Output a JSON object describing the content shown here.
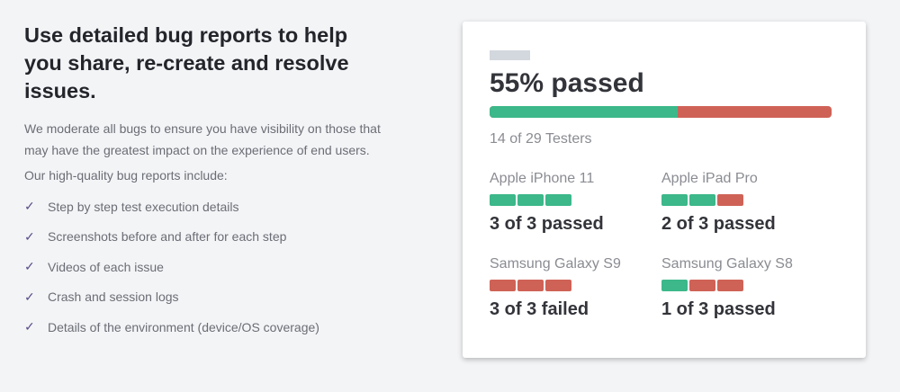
{
  "left": {
    "title": "Use detailed bug reports to help you share, re-create and resolve issues.",
    "intro": "We moderate all bugs to ensure you have visibility on those that may have the greatest impact on the experience of end users.",
    "subheading": "Our high-quality bug reports include:",
    "features": [
      "Step by step test execution details",
      "Screenshots before and after for each step",
      "Videos of each issue",
      "Crash and session logs",
      "Details of the environment (device/OS coverage)"
    ]
  },
  "card": {
    "headline": "55% passed",
    "pass_percent": 55,
    "testers": "14 of 29 Testers",
    "colors": {
      "pass": "#3cb88a",
      "fail": "#cf6257",
      "check": "#5b4f8a"
    },
    "devices": [
      {
        "name": "Apple iPhone 11",
        "segments": [
          "pass",
          "pass",
          "pass"
        ],
        "result": "3 of 3 passed"
      },
      {
        "name": "Apple iPad Pro",
        "segments": [
          "pass",
          "pass",
          "fail"
        ],
        "result": "2 of 3 passed"
      },
      {
        "name": "Samsung Galaxy S9",
        "segments": [
          "fail",
          "fail",
          "fail"
        ],
        "result": "3 of 3 failed"
      },
      {
        "name": "Samsung Galaxy S8",
        "segments": [
          "pass",
          "fail",
          "fail"
        ],
        "result": "1 of 3 passed"
      }
    ]
  }
}
